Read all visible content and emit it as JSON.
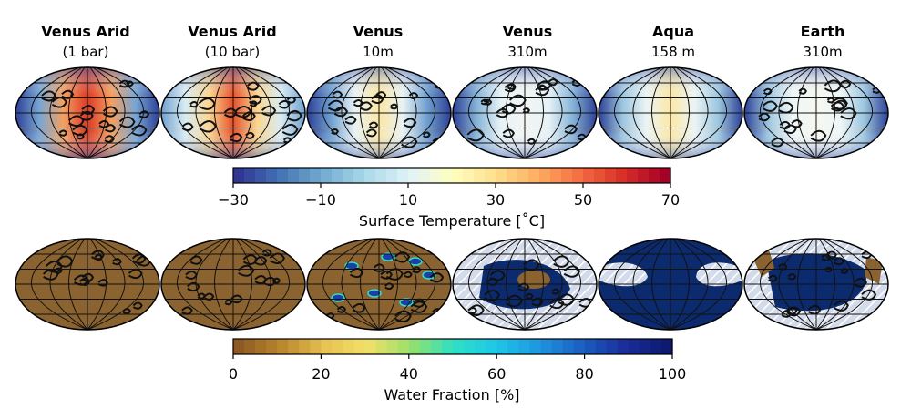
{
  "columns": [
    {
      "title": "Venus Arid",
      "subtitle": "(1 bar)"
    },
    {
      "title": "Venus Arid",
      "subtitle": "(10 bar)"
    },
    {
      "title": "Venus",
      "subtitle": "10m"
    },
    {
      "title": "Venus",
      "subtitle": "310m"
    },
    {
      "title": "Aqua",
      "subtitle": "158 m"
    },
    {
      "title": "Earth",
      "subtitle": "310m"
    }
  ],
  "colorbars": {
    "temperature": {
      "label": "Surface Temperature [˚C]",
      "ticks": [
        "−30",
        "−10",
        "10",
        "30",
        "50",
        "70"
      ],
      "tick_values": [
        -30,
        -10,
        10,
        30,
        50,
        70
      ],
      "range": [
        -30,
        70
      ],
      "colormap": "RdYlBu_r",
      "colors": [
        "#313695",
        "#4575b4",
        "#74add1",
        "#abd9e9",
        "#e0f3f8",
        "#ffffbf",
        "#fee090",
        "#fdae61",
        "#f46d43",
        "#d73027",
        "#a50026"
      ]
    },
    "water": {
      "label": "Water Fraction [%]",
      "ticks": [
        "0",
        "20",
        "40",
        "60",
        "80",
        "100"
      ],
      "tick_values": [
        0,
        20,
        40,
        60,
        80,
        100
      ],
      "range": [
        0,
        100
      ],
      "colors": [
        "#8c5a22",
        "#b8862e",
        "#e6c252",
        "#f3e06a",
        "#9ae06a",
        "#2ee0c2",
        "#1fc8e8",
        "#1e96e0",
        "#1c5fc0",
        "#1a2e9a",
        "#0d1a70"
      ]
    }
  },
  "colors": {
    "land_brown": "#8a6330",
    "ocean_navy": "#0c2a6e",
    "ice_hatch": "#c9d4e6",
    "hot": "#e0402a",
    "cold": "#2a3f9a"
  }
}
